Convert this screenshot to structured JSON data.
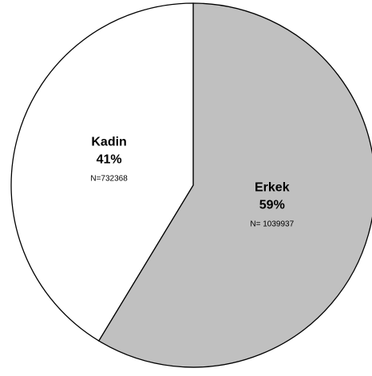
{
  "chart_data": {
    "type": "pie",
    "title": "",
    "start_angle_deg": 0,
    "direction": "clockwise",
    "slices": [
      {
        "name": "Erkek",
        "percent_label": "59%",
        "n_label": "N= 1039937",
        "value": 1039937,
        "color": "#c0c0c0"
      },
      {
        "name": "Kadin",
        "percent_label": "41%",
        "n_label": "N=732368",
        "value": 732368,
        "color": "#ffffff"
      }
    ],
    "edge_color": "#000000"
  }
}
